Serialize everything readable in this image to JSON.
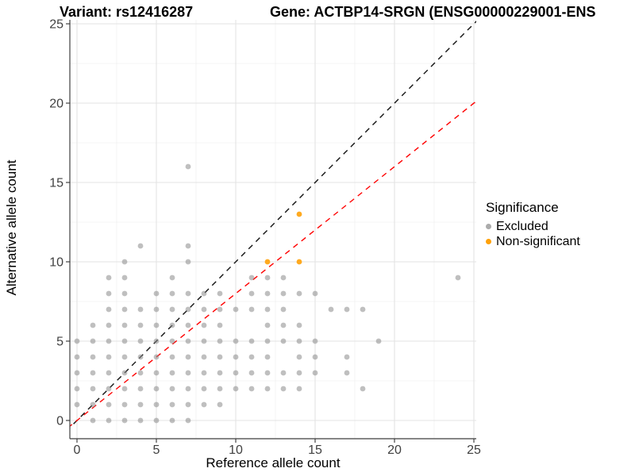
{
  "titles": {
    "left": "Variant: rs12416287",
    "right": "Gene: ACTBP14-SRGN (ENSG00000229001-ENS"
  },
  "chart_data": {
    "type": "scatter",
    "title_left": "Variant: rs12416287",
    "title_right": "Gene: ACTBP14-SRGN (ENSG00000229001-ENS",
    "xlabel": "Reference allele count",
    "ylabel": "Alternative allele count",
    "xlim": [
      -1,
      26
    ],
    "ylim": [
      -1,
      25.5
    ],
    "xticks": [
      0,
      5,
      10,
      15,
      20,
      25
    ],
    "yticks": [
      0,
      5,
      10,
      15,
      20,
      25
    ],
    "grid": "major-and-minor",
    "colors": {
      "excluded": "#8a8a8a",
      "non_significant": "#FFA108",
      "identity_line": "#111111",
      "ratio_line": "#FF0000",
      "grid_major": "#e3e3e3",
      "grid_minor": "#f1f1f1",
      "axis": "#3f3f3f"
    },
    "legend": {
      "title": "Significance",
      "position": "right",
      "items": [
        {
          "label": "Excluded",
          "color": "#ABABAB"
        },
        {
          "label": "Non-significant",
          "color": "#FFA108"
        }
      ]
    },
    "lines": [
      {
        "name": "identity-line",
        "slope": 1,
        "intercept": 0,
        "color": "#111111",
        "dash": "7 6"
      },
      {
        "name": "ratio-line",
        "slope": 0.8,
        "intercept": 0,
        "color": "#FF0000",
        "dash": "7 6"
      }
    ],
    "series": [
      {
        "name": "Excluded",
        "color": "#8a8a8a",
        "opacity": 0.55,
        "points": [
          [
            1,
            0
          ],
          [
            2,
            0
          ],
          [
            3,
            0
          ],
          [
            4,
            0
          ],
          [
            5,
            0
          ],
          [
            6,
            0
          ],
          [
            7,
            0
          ],
          [
            0,
            1
          ],
          [
            1,
            1
          ],
          [
            2,
            1
          ],
          [
            3,
            1
          ],
          [
            4,
            1
          ],
          [
            5,
            1
          ],
          [
            6,
            1
          ],
          [
            7,
            1
          ],
          [
            8,
            1
          ],
          [
            9,
            1
          ],
          [
            0,
            2
          ],
          [
            1,
            2
          ],
          [
            2,
            2
          ],
          [
            3,
            2
          ],
          [
            4,
            2
          ],
          [
            5,
            2
          ],
          [
            6,
            2
          ],
          [
            7,
            2
          ],
          [
            8,
            2
          ],
          [
            9,
            2
          ],
          [
            10,
            2
          ],
          [
            11,
            2
          ],
          [
            12,
            2
          ],
          [
            13,
            2
          ],
          [
            14,
            2
          ],
          [
            18,
            2
          ],
          [
            0,
            3
          ],
          [
            1,
            3
          ],
          [
            2,
            3
          ],
          [
            3,
            3
          ],
          [
            4,
            3
          ],
          [
            5,
            3
          ],
          [
            6,
            3
          ],
          [
            7,
            3
          ],
          [
            8,
            3
          ],
          [
            9,
            3
          ],
          [
            10,
            3
          ],
          [
            11,
            3
          ],
          [
            12,
            3
          ],
          [
            13,
            3
          ],
          [
            14,
            3
          ],
          [
            15,
            3
          ],
          [
            17,
            3
          ],
          [
            0,
            4
          ],
          [
            1,
            4
          ],
          [
            2,
            4
          ],
          [
            3,
            4
          ],
          [
            4,
            4
          ],
          [
            5,
            4
          ],
          [
            6,
            4
          ],
          [
            7,
            4
          ],
          [
            8,
            4
          ],
          [
            9,
            4
          ],
          [
            10,
            4
          ],
          [
            11,
            4
          ],
          [
            12,
            4
          ],
          [
            14,
            4
          ],
          [
            15,
            4
          ],
          [
            17,
            4
          ],
          [
            0,
            5
          ],
          [
            1,
            5
          ],
          [
            2,
            5
          ],
          [
            3,
            5
          ],
          [
            4,
            5
          ],
          [
            5,
            5
          ],
          [
            6,
            5
          ],
          [
            7,
            5
          ],
          [
            8,
            5
          ],
          [
            9,
            5
          ],
          [
            10,
            5
          ],
          [
            11,
            5
          ],
          [
            12,
            5
          ],
          [
            13,
            5
          ],
          [
            14,
            5
          ],
          [
            15,
            5
          ],
          [
            19,
            5
          ],
          [
            1,
            6
          ],
          [
            2,
            6
          ],
          [
            3,
            6
          ],
          [
            4,
            6
          ],
          [
            5,
            6
          ],
          [
            6,
            6
          ],
          [
            7,
            6
          ],
          [
            8,
            6
          ],
          [
            9,
            6
          ],
          [
            12,
            6
          ],
          [
            13,
            6
          ],
          [
            14,
            6
          ],
          [
            2,
            7
          ],
          [
            3,
            7
          ],
          [
            4,
            7
          ],
          [
            5,
            7
          ],
          [
            6,
            7
          ],
          [
            7,
            7
          ],
          [
            8,
            7
          ],
          [
            9,
            7
          ],
          [
            10,
            7
          ],
          [
            11,
            7
          ],
          [
            12,
            7
          ],
          [
            13,
            7
          ],
          [
            16,
            7
          ],
          [
            17,
            7
          ],
          [
            18,
            7
          ],
          [
            2,
            8
          ],
          [
            3,
            8
          ],
          [
            5,
            8
          ],
          [
            6,
            8
          ],
          [
            7,
            8
          ],
          [
            8,
            8
          ],
          [
            9,
            8
          ],
          [
            11,
            8
          ],
          [
            12,
            8
          ],
          [
            13,
            8
          ],
          [
            14,
            8
          ],
          [
            15,
            8
          ],
          [
            2,
            9
          ],
          [
            3,
            9
          ],
          [
            6,
            9
          ],
          [
            11,
            9
          ],
          [
            12,
            9
          ],
          [
            13,
            9
          ],
          [
            24,
            9
          ],
          [
            3,
            10
          ],
          [
            7,
            10
          ],
          [
            4,
            11
          ],
          [
            7,
            11
          ],
          [
            7,
            16
          ]
        ]
      },
      {
        "name": "Non-significant",
        "color": "#FFA108",
        "opacity": 0.9,
        "points": [
          [
            12,
            10
          ],
          [
            14,
            10
          ],
          [
            14,
            13
          ]
        ]
      }
    ]
  }
}
